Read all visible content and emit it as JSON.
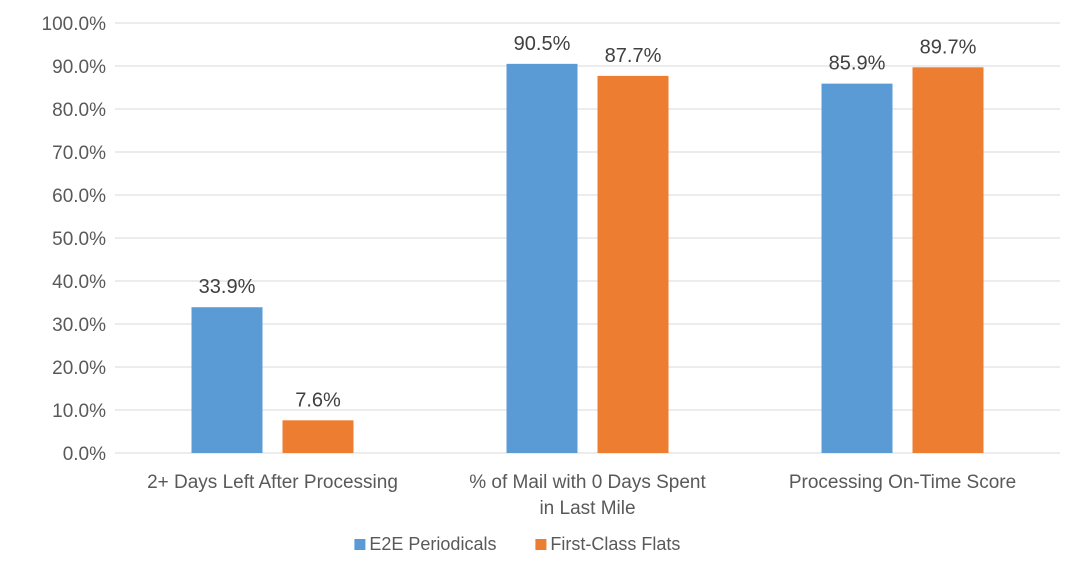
{
  "chart_data": {
    "type": "bar",
    "title": "",
    "xlabel": "",
    "ylabel": "",
    "categories": [
      [
        "2+ Days Left After Processing"
      ],
      [
        "% of Mail with 0 Days Spent",
        "in Last Mile"
      ],
      [
        "Processing On-Time Score"
      ]
    ],
    "series": [
      {
        "name": "E2E Periodicals",
        "color": "#5b9bd5",
        "values": [
          33.9,
          90.5,
          85.9
        ],
        "labels": [
          "33.9%",
          "90.5%",
          "85.9%"
        ]
      },
      {
        "name": "First-Class Flats",
        "color": "#ed7d31",
        "values": [
          7.6,
          87.7,
          89.7
        ],
        "labels": [
          "7.6%",
          "87.7%",
          "89.7%"
        ]
      }
    ],
    "ylim": [
      0,
      100
    ],
    "ytick_step": 10,
    "ytick_labels": [
      "0.0%",
      "10.0%",
      "20.0%",
      "30.0%",
      "40.0%",
      "50.0%",
      "60.0%",
      "70.0%",
      "80.0%",
      "90.0%",
      "100.0%"
    ],
    "grid": true,
    "legend_position": "bottom"
  }
}
